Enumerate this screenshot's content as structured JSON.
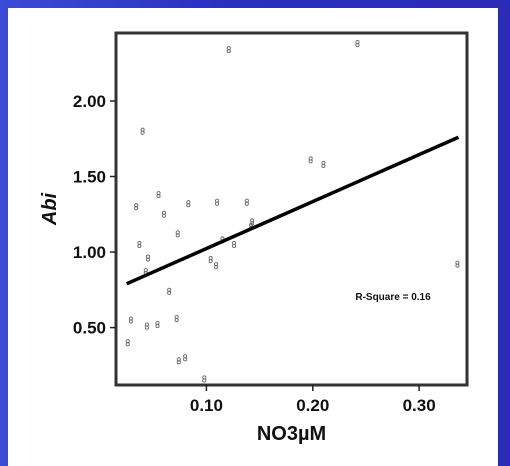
{
  "chart_data": {
    "type": "scatter",
    "xlabel": "NO3µM",
    "ylabel": "Abi",
    "xlim": [
      0.015,
      0.345
    ],
    "ylim": [
      0.12,
      2.45
    ],
    "xticks": [
      {
        "v": 0.1,
        "label": "0.10"
      },
      {
        "v": 0.2,
        "label": "0.20"
      },
      {
        "v": 0.3,
        "label": "0.30"
      }
    ],
    "yticks": [
      {
        "v": 0.5,
        "label": "0.50"
      },
      {
        "v": 1.0,
        "label": "1.00"
      },
      {
        "v": 1.5,
        "label": "1.50"
      },
      {
        "v": 2.0,
        "label": "2.00"
      }
    ],
    "points": [
      {
        "x": 0.026,
        "y": 0.4
      },
      {
        "x": 0.029,
        "y": 0.55
      },
      {
        "x": 0.034,
        "y": 1.3
      },
      {
        "x": 0.037,
        "y": 1.05
      },
      {
        "x": 0.04,
        "y": 1.8
      },
      {
        "x": 0.043,
        "y": 0.87
      },
      {
        "x": 0.044,
        "y": 0.51
      },
      {
        "x": 0.045,
        "y": 0.96
      },
      {
        "x": 0.054,
        "y": 0.52
      },
      {
        "x": 0.055,
        "y": 1.38
      },
      {
        "x": 0.06,
        "y": 1.25
      },
      {
        "x": 0.065,
        "y": 0.74
      },
      {
        "x": 0.072,
        "y": 0.56
      },
      {
        "x": 0.073,
        "y": 1.12
      },
      {
        "x": 0.074,
        "y": 0.28
      },
      {
        "x": 0.08,
        "y": 0.3
      },
      {
        "x": 0.083,
        "y": 1.32
      },
      {
        "x": 0.098,
        "y": 0.16
      },
      {
        "x": 0.104,
        "y": 0.95
      },
      {
        "x": 0.109,
        "y": 0.91
      },
      {
        "x": 0.11,
        "y": 1.33
      },
      {
        "x": 0.115,
        "y": 1.08
      },
      {
        "x": 0.121,
        "y": 2.34
      },
      {
        "x": 0.126,
        "y": 1.05
      },
      {
        "x": 0.138,
        "y": 1.33
      },
      {
        "x": 0.142,
        "y": 1.17
      },
      {
        "x": 0.143,
        "y": 1.2
      },
      {
        "x": 0.198,
        "y": 1.61
      },
      {
        "x": 0.21,
        "y": 1.58
      },
      {
        "x": 0.242,
        "y": 2.38
      },
      {
        "x": 0.336,
        "y": 0.92
      }
    ],
    "fit_line": {
      "x": [
        0.025,
        0.337
      ],
      "y": [
        0.79,
        1.76
      ]
    },
    "annotation": "R-Square = 0.16",
    "grid": false
  }
}
